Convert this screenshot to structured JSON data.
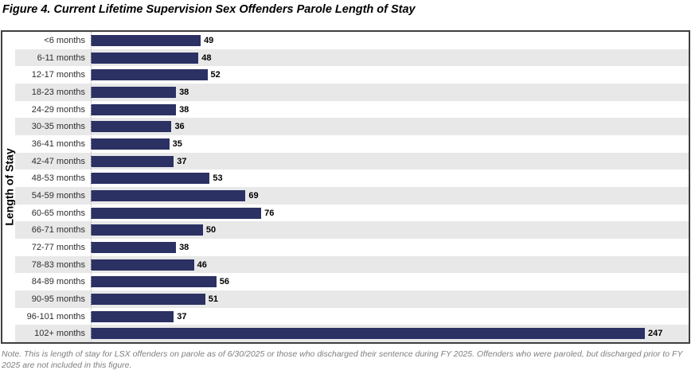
{
  "title": "Figure 4. Current Lifetime Supervision Sex Offenders Parole Length of Stay",
  "note": "Note. This is length of stay for LSX offenders on parole as of 6/30/2025 or those who discharged their sentence during FY 2025. Offenders who were paroled, but discharged prior to FY 2025 are not included in this figure.",
  "chart_data": {
    "type": "bar",
    "orientation": "horizontal",
    "title": "Figure 4. Current Lifetime Supervision Sex Offenders Parole Length of Stay",
    "xlabel": "",
    "ylabel": "Length of Stay",
    "categories": [
      "<6 months",
      "6-11 months",
      "12-17 months",
      "18-23 months",
      "24-29 months",
      "30-35 months",
      "36-41 months",
      "42-47 months",
      "48-53 months",
      "54-59 months",
      "60-65 months",
      "66-71 months",
      "72-77 months",
      "78-83 months",
      "84-89 months",
      "90-95 months",
      "96-101 months",
      "102+ months"
    ],
    "values": [
      49,
      48,
      52,
      38,
      38,
      36,
      35,
      37,
      53,
      69,
      76,
      50,
      38,
      46,
      56,
      51,
      37,
      247
    ],
    "data_labels": true,
    "grid": false,
    "xlim": [
      0,
      260
    ],
    "legend": "none",
    "bar_color": "#2b3163",
    "row_band_color": "#e8e8e8",
    "note_color": "#7f7f7f"
  }
}
